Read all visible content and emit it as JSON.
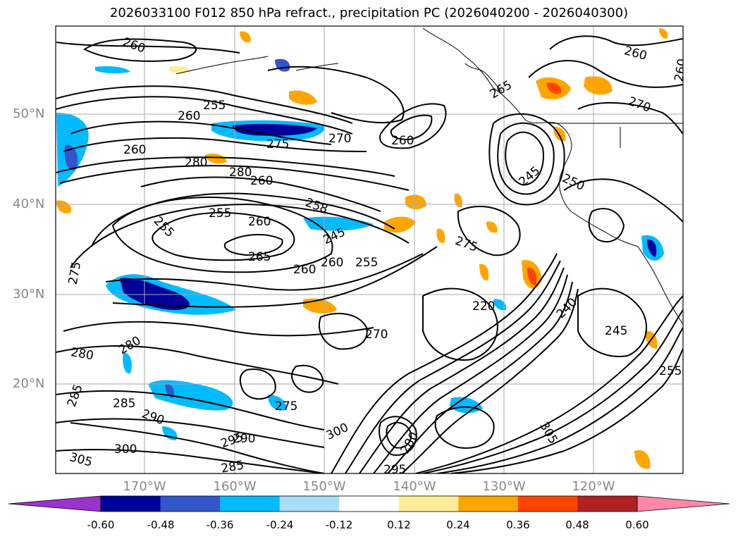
{
  "title": "2026033100 F012 850 hPa refract., precipitation PC (2026040200 - 2026040300)",
  "lat_labels": [
    "50°N",
    "40°N",
    "30°N",
    "20°N"
  ],
  "lon_labels": [
    "170°W",
    "160°W",
    "150°W",
    "140°W",
    "130°W",
    "120°W"
  ],
  "contour_labels": [
    "260",
    "255",
    "260",
    "275",
    "270",
    "260",
    "280",
    "280",
    "260",
    "255",
    "258",
    "245",
    "260",
    "255",
    "265",
    "260",
    "260",
    "255",
    "275",
    "270",
    "280",
    "280",
    "285",
    "285",
    "290",
    "295",
    "290",
    "300",
    "305",
    "285",
    "300",
    "280",
    "295",
    "275",
    "260",
    "265",
    "260",
    "270",
    "260",
    "250",
    "245",
    "275",
    "240",
    "245",
    "255",
    "220",
    "305"
  ],
  "colorbar": {
    "ticks": [
      "-0.60",
      "-0.48",
      "-0.36",
      "-0.24",
      "-0.12",
      "0.12",
      "0.24",
      "0.36",
      "0.48",
      "0.60"
    ],
    "colors": [
      "#9933cc",
      "#000099",
      "#3355cc",
      "#00bbff",
      "#aaddf7",
      "#ffffff",
      "#ffee99",
      "#ffa500",
      "#ff4400",
      "#b22222",
      "#ff88aa"
    ]
  }
}
